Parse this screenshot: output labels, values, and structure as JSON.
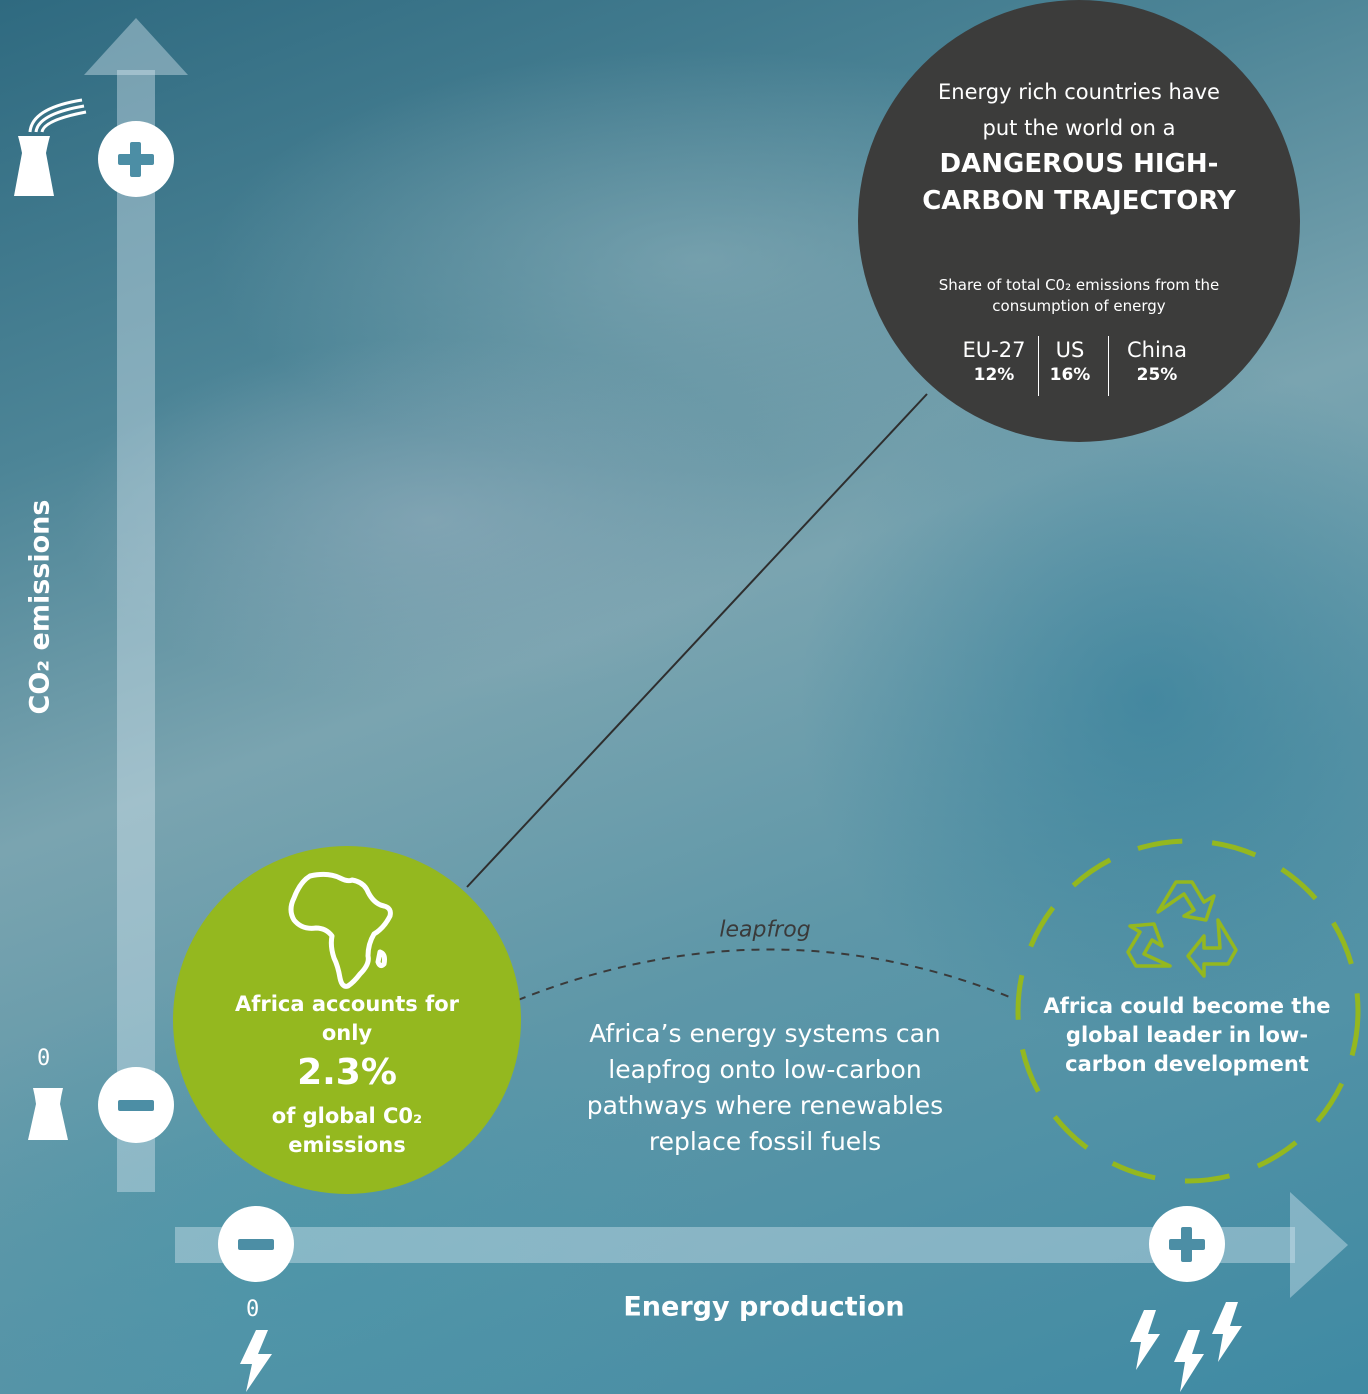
{
  "axes": {
    "y_label": "CO₂ emissions",
    "x_label": "Energy production",
    "y_zero": "0",
    "x_zero": "0"
  },
  "dark_circle": {
    "intro": "Energy rich countries have put the world on a",
    "headline": "DANGEROUS HIGH-CARBON TRAJECTORY",
    "share_label": "Share of total C0₂ emissions from the consumption of energy",
    "stats": [
      {
        "region": "EU-27",
        "value": "12%"
      },
      {
        "region": "US",
        "value": "16%"
      },
      {
        "region": "China",
        "value": "25%"
      }
    ]
  },
  "green_circle": {
    "line1": "Africa accounts for only",
    "big_value": "2.3%",
    "line3": "of global C0₂ emissions"
  },
  "leapfrog_label": "leapfrog",
  "middle_text": "Africa’s energy systems can leapfrog onto low-carbon pathways where renewables replace fossil fuels",
  "right_circle_text": "Africa could become the global leader in low-carbon development",
  "colors": {
    "green": "#94b81f",
    "dark": "#3c3c3b",
    "white": "#ffffff",
    "sign_blue": "#4c8ea5"
  },
  "icons": [
    "smoking-power-plant-icon",
    "power-plant-icon",
    "lightning-icon",
    "multiple-lightning-icon",
    "africa-map-icon",
    "recycle-icon"
  ]
}
